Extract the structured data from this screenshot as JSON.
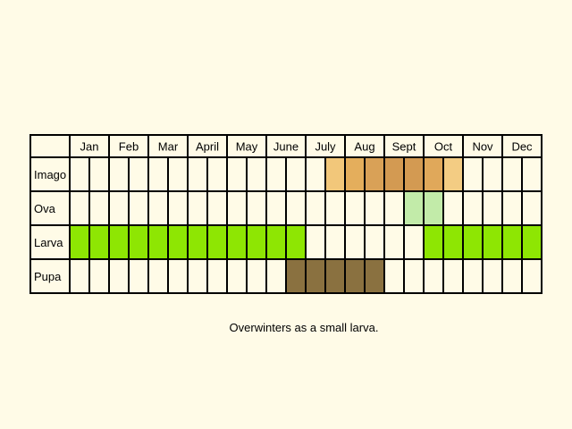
{
  "months": [
    "Jan",
    "Feb",
    "Mar",
    "April",
    "May",
    "June",
    "July",
    "Aug",
    "Sept",
    "Oct",
    "Nov",
    "Dec"
  ],
  "stages": [
    "Imago",
    "Ova",
    "Larva",
    "Pupa"
  ],
  "activity": [
    {
      "stage": "Imago",
      "periods": [
        {
          "from_slot": 13,
          "to_slot": 13,
          "color": "#f2c77a"
        },
        {
          "from_slot": 14,
          "to_slot": 14,
          "color": "#e4ae5c"
        },
        {
          "from_slot": 15,
          "to_slot": 15,
          "color": "#d9a157"
        },
        {
          "from_slot": 16,
          "to_slot": 17,
          "color": "#d39a52"
        },
        {
          "from_slot": 18,
          "to_slot": 18,
          "color": "#e0a85a"
        },
        {
          "from_slot": 19,
          "to_slot": 19,
          "color": "#f3cc83"
        }
      ]
    },
    {
      "stage": "Ova",
      "periods": [
        {
          "from_slot": 17,
          "to_slot": 18,
          "color": "#c2eba9"
        }
      ]
    },
    {
      "stage": "Larva",
      "periods": [
        {
          "from_slot": 0,
          "to_slot": 11,
          "color": "#8ee603"
        },
        {
          "from_slot": 18,
          "to_slot": 23,
          "color": "#8ee603"
        }
      ]
    },
    {
      "stage": "Pupa",
      "periods": [
        {
          "from_slot": 11,
          "to_slot": 15,
          "color": "#8a7140"
        }
      ]
    }
  ],
  "caption": "Overwinters as a small larva.",
  "colors": {
    "background": "#fffbe7",
    "grid_line": "#000000",
    "larva": "#8ee603",
    "pupa": "#8a7140",
    "ova": "#c2eba9",
    "imago": "#d39a52"
  }
}
